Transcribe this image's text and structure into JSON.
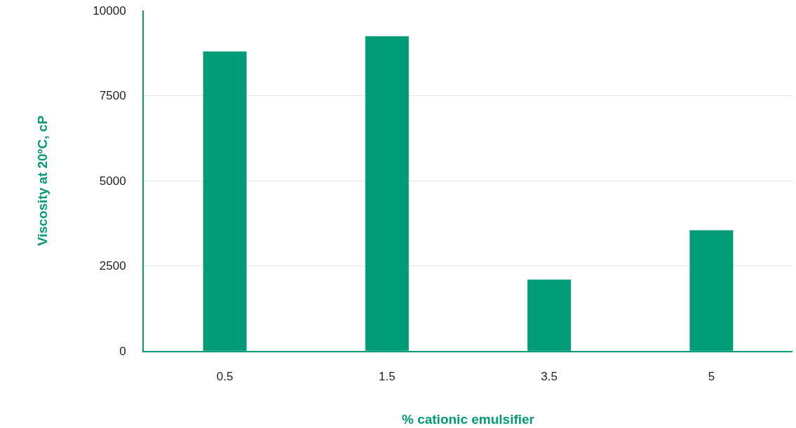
{
  "chart_data": {
    "type": "bar",
    "xlabel": "% cationic emulsifier",
    "ylabel": "Viscosity at 20ºC, cP",
    "categories": [
      "0.5",
      "1.5",
      "3.5",
      "5"
    ],
    "values": [
      8800,
      9250,
      2100,
      3550
    ],
    "color": "#009b77",
    "ylim": [
      0,
      10000
    ],
    "yticks": [
      0,
      2500,
      5000,
      7500,
      10000
    ],
    "grid": "y"
  }
}
